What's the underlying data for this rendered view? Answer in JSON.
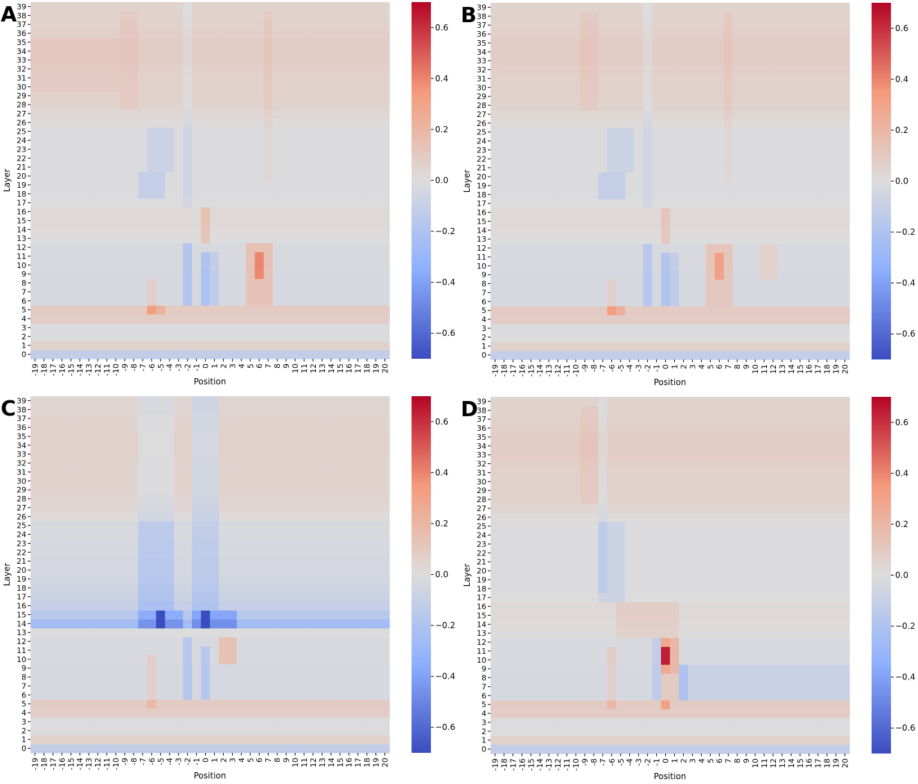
{
  "figure": {
    "panels": [
      "A",
      "B",
      "C",
      "D"
    ],
    "xlabel": "Position",
    "ylabel": "Layer",
    "colormap": "coolwarm",
    "vmin": -0.7,
    "vmax": 0.7,
    "colorbar_ticks": [
      "0.6",
      "0.4",
      "0.2",
      "0.0",
      "−0.2",
      "−0.4",
      "−0.6"
    ],
    "colors": {
      "neg": "#3b4cc0",
      "mid": "#dddcdc",
      "pos": "#b40426"
    }
  },
  "chart_data": [
    {
      "panel": "A",
      "type": "heatmap",
      "x": [
        -19,
        -18,
        -17,
        -16,
        -15,
        -14,
        -13,
        -12,
        -11,
        -10,
        -9,
        -8,
        -7,
        -6,
        -5,
        -4,
        -3,
        -2,
        -1,
        0,
        1,
        2,
        3,
        4,
        5,
        6,
        7,
        8,
        9,
        10,
        11,
        12,
        13,
        14,
        15,
        16,
        17,
        18,
        19,
        20
      ],
      "y_range": [
        0,
        39
      ],
      "xlabel": "Position",
      "ylabel": "Layer",
      "zlim": [
        -0.7,
        0.7
      ],
      "base_by_layer": [
        -0.12,
        0.06,
        0.0,
        -0.01,
        0.08,
        0.09,
        -0.03,
        -0.03,
        -0.03,
        -0.03,
        -0.02,
        -0.02,
        -0.02,
        0.0,
        0.01,
        0.02,
        0.02,
        0.0,
        -0.01,
        -0.01,
        -0.01,
        -0.01,
        -0.01,
        -0.01,
        -0.01,
        -0.01,
        0.01,
        0.03,
        0.05,
        0.06,
        0.06,
        0.06,
        0.07,
        0.08,
        0.08,
        0.08,
        0.07,
        0.06,
        0.05,
        0.05
      ],
      "features": [
        {
          "x": [
            -2,
            -2
          ],
          "layers": [
            6,
            12
          ],
          "value": -0.16
        },
        {
          "x": [
            0,
            0
          ],
          "layers": [
            6,
            11
          ],
          "value": -0.18
        },
        {
          "x": [
            1,
            1
          ],
          "layers": [
            6,
            11
          ],
          "value": -0.1
        },
        {
          "x": [
            5,
            7
          ],
          "layers": [
            6,
            12
          ],
          "value": 0.16
        },
        {
          "x": [
            6,
            6
          ],
          "layers": [
            9,
            11
          ],
          "value": 0.26
        },
        {
          "x": [
            -6,
            -6
          ],
          "layers": [
            5,
            8
          ],
          "value": 0.1
        },
        {
          "x": [
            -6,
            -5
          ],
          "layers": [
            5,
            5
          ],
          "value": 0.14
        },
        {
          "x": [
            -7,
            -5
          ],
          "layers": [
            18,
            20
          ],
          "value": -0.1
        },
        {
          "x": [
            -6,
            -4
          ],
          "layers": [
            21,
            25
          ],
          "value": -0.07
        },
        {
          "x": [
            0,
            0
          ],
          "layers": [
            13,
            16
          ],
          "value": 0.12
        },
        {
          "x": [
            -2,
            -2
          ],
          "layers": [
            17,
            39
          ],
          "value": -0.05
        },
        {
          "x": [
            7,
            7
          ],
          "layers": [
            20,
            38
          ],
          "value": 0.04
        },
        {
          "x": [
            -9,
            -8
          ],
          "layers": [
            28,
            38
          ],
          "value": 0.04
        },
        {
          "x": [
            -19,
            -10
          ],
          "layers": [
            30,
            35
          ],
          "value": 0.03
        }
      ]
    },
    {
      "panel": "B",
      "type": "heatmap",
      "x": [
        -19,
        -18,
        -17,
        -16,
        -15,
        -14,
        -13,
        -12,
        -11,
        -10,
        -9,
        -8,
        -7,
        -6,
        -5,
        -4,
        -3,
        -2,
        -1,
        0,
        1,
        2,
        3,
        4,
        5,
        6,
        7,
        8,
        9,
        10,
        11,
        12,
        13,
        14,
        15,
        16,
        17,
        18,
        19,
        20
      ],
      "y_range": [
        0,
        39
      ],
      "xlabel": "Position",
      "ylabel": "Layer",
      "zlim": [
        -0.7,
        0.7
      ],
      "base_by_layer": [
        -0.12,
        0.06,
        0.0,
        -0.01,
        0.08,
        0.09,
        -0.03,
        -0.03,
        -0.03,
        -0.03,
        -0.02,
        -0.02,
        -0.02,
        0.0,
        0.01,
        0.02,
        0.02,
        0.0,
        -0.01,
        -0.01,
        -0.01,
        -0.01,
        -0.01,
        -0.01,
        -0.01,
        -0.01,
        0.01,
        0.03,
        0.05,
        0.06,
        0.06,
        0.06,
        0.07,
        0.08,
        0.08,
        0.08,
        0.07,
        0.06,
        0.05,
        0.05
      ],
      "features": [
        {
          "x": [
            -2,
            -2
          ],
          "layers": [
            6,
            12
          ],
          "value": -0.14
        },
        {
          "x": [
            0,
            0
          ],
          "layers": [
            6,
            11
          ],
          "value": -0.16
        },
        {
          "x": [
            1,
            1
          ],
          "layers": [
            6,
            11
          ],
          "value": -0.1
        },
        {
          "x": [
            5,
            7
          ],
          "layers": [
            6,
            12
          ],
          "value": 0.14
        },
        {
          "x": [
            6,
            6
          ],
          "layers": [
            9,
            11
          ],
          "value": 0.2
        },
        {
          "x": [
            11,
            12
          ],
          "layers": [
            9,
            12
          ],
          "value": 0.08
        },
        {
          "x": [
            -6,
            -6
          ],
          "layers": [
            5,
            8
          ],
          "value": 0.1
        },
        {
          "x": [
            -6,
            -5
          ],
          "layers": [
            5,
            5
          ],
          "value": 0.14
        },
        {
          "x": [
            -7,
            -5
          ],
          "layers": [
            18,
            20
          ],
          "value": -0.1
        },
        {
          "x": [
            -6,
            -4
          ],
          "layers": [
            21,
            25
          ],
          "value": -0.07
        },
        {
          "x": [
            0,
            0
          ],
          "layers": [
            13,
            16
          ],
          "value": 0.1
        },
        {
          "x": [
            -2,
            -2
          ],
          "layers": [
            17,
            39
          ],
          "value": -0.05
        },
        {
          "x": [
            7,
            7
          ],
          "layers": [
            20,
            38
          ],
          "value": 0.04
        },
        {
          "x": [
            -9,
            -8
          ],
          "layers": [
            28,
            38
          ],
          "value": 0.04
        }
      ]
    },
    {
      "panel": "C",
      "type": "heatmap",
      "x": [
        -19,
        -18,
        -17,
        -16,
        -15,
        -14,
        -13,
        -12,
        -11,
        -10,
        -9,
        -8,
        -7,
        -6,
        -5,
        -4,
        -3,
        -2,
        -1,
        0,
        1,
        2,
        3,
        4,
        5,
        6,
        7,
        8,
        9,
        10,
        11,
        12,
        13,
        14,
        15,
        16,
        17,
        18,
        19,
        20
      ],
      "y_range": [
        0,
        39
      ],
      "xlabel": "Position",
      "ylabel": "Layer",
      "zlim": [
        -0.7,
        0.7
      ],
      "base_by_layer": [
        -0.12,
        0.06,
        0.0,
        -0.01,
        0.08,
        0.09,
        -0.03,
        -0.03,
        -0.03,
        -0.03,
        -0.02,
        -0.02,
        -0.02,
        0.0,
        -0.25,
        -0.16,
        -0.1,
        -0.08,
        -0.06,
        -0.05,
        -0.04,
        -0.04,
        -0.03,
        -0.03,
        -0.02,
        -0.02,
        0.01,
        0.03,
        0.04,
        0.05,
        0.05,
        0.05,
        0.05,
        0.06,
        0.06,
        0.06,
        0.05,
        0.05,
        0.04,
        0.04
      ],
      "features": [
        {
          "x": [
            -7,
            -3
          ],
          "layers": [
            14,
            15
          ],
          "value": -0.2
        },
        {
          "x": [
            -5,
            -5
          ],
          "layers": [
            14,
            15
          ],
          "value": -0.35
        },
        {
          "x": [
            0,
            0
          ],
          "layers": [
            14,
            15
          ],
          "value": -0.38
        },
        {
          "x": [
            -1,
            3
          ],
          "layers": [
            14,
            15
          ],
          "value": -0.22
        },
        {
          "x": [
            -7,
            -4
          ],
          "layers": [
            16,
            25
          ],
          "value": -0.12
        },
        {
          "x": [
            -1,
            1
          ],
          "layers": [
            16,
            39
          ],
          "value": -0.1
        },
        {
          "x": [
            2,
            3
          ],
          "layers": [
            10,
            12
          ],
          "value": 0.16
        },
        {
          "x": [
            -2,
            -2
          ],
          "layers": [
            6,
            12
          ],
          "value": -0.14
        },
        {
          "x": [
            0,
            0
          ],
          "layers": [
            6,
            11
          ],
          "value": -0.14
        },
        {
          "x": [
            -6,
            -6
          ],
          "layers": [
            5,
            10
          ],
          "value": 0.1
        },
        {
          "x": [
            -7,
            -4
          ],
          "layers": [
            26,
            39
          ],
          "value": -0.06
        }
      ]
    },
    {
      "panel": "D",
      "type": "heatmap",
      "x": [
        -19,
        -18,
        -17,
        -16,
        -15,
        -14,
        -13,
        -12,
        -11,
        -10,
        -9,
        -8,
        -7,
        -6,
        -5,
        -4,
        -3,
        -2,
        -1,
        0,
        1,
        2,
        3,
        4,
        5,
        6,
        7,
        8,
        9,
        10,
        11,
        12,
        13,
        14,
        15,
        16,
        17,
        18,
        19,
        20
      ],
      "y_range": [
        0,
        39
      ],
      "xlabel": "Position",
      "ylabel": "Layer",
      "zlim": [
        -0.7,
        0.7
      ],
      "base_by_layer": [
        -0.12,
        0.06,
        0.0,
        -0.01,
        0.08,
        0.09,
        -0.03,
        -0.03,
        -0.03,
        -0.03,
        -0.02,
        -0.02,
        -0.02,
        0.0,
        0.01,
        0.02,
        0.02,
        0.0,
        -0.01,
        -0.01,
        -0.01,
        -0.01,
        -0.01,
        -0.01,
        -0.01,
        -0.01,
        0.01,
        0.03,
        0.05,
        0.06,
        0.06,
        0.06,
        0.07,
        0.08,
        0.08,
        0.08,
        0.07,
        0.06,
        0.05,
        0.05
      ],
      "features": [
        {
          "x": [
            0,
            0
          ],
          "layers": [
            9,
            12
          ],
          "value": 0.3
        },
        {
          "x": [
            0,
            0
          ],
          "layers": [
            10,
            11
          ],
          "value": 0.36
        },
        {
          "x": [
            1,
            1
          ],
          "layers": [
            9,
            12
          ],
          "value": 0.22
        },
        {
          "x": [
            0,
            1
          ],
          "layers": [
            6,
            8
          ],
          "value": 0.12
        },
        {
          "x": [
            0,
            0
          ],
          "layers": [
            5,
            5
          ],
          "value": 0.22
        },
        {
          "x": [
            2,
            20
          ],
          "layers": [
            6,
            9
          ],
          "value": -0.06
        },
        {
          "x": [
            2,
            2
          ],
          "layers": [
            6,
            9
          ],
          "value": -0.12
        },
        {
          "x": [
            -1,
            -1
          ],
          "layers": [
            6,
            12
          ],
          "value": -0.1
        },
        {
          "x": [
            -6,
            -6
          ],
          "layers": [
            5,
            11
          ],
          "value": 0.1
        },
        {
          "x": [
            -7,
            -5
          ],
          "layers": [
            17,
            25
          ],
          "value": -0.07
        },
        {
          "x": [
            -7,
            -7
          ],
          "layers": [
            18,
            39
          ],
          "value": -0.05
        },
        {
          "x": [
            -5,
            1
          ],
          "layers": [
            13,
            16
          ],
          "value": 0.06
        },
        {
          "x": [
            -9,
            -8
          ],
          "layers": [
            28,
            38
          ],
          "value": 0.04
        }
      ]
    }
  ]
}
